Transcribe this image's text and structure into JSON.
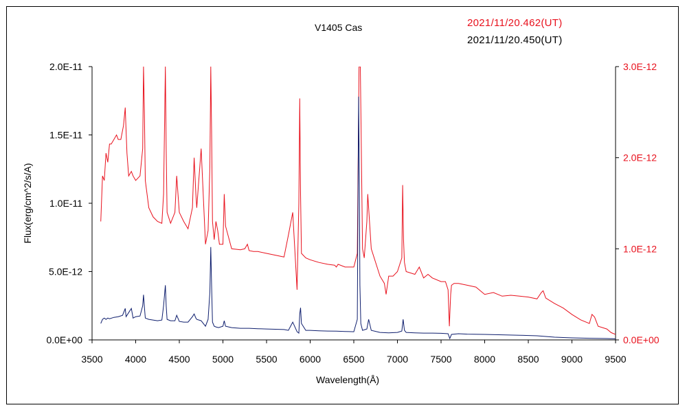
{
  "chart_data": {
    "type": "line",
    "title": "V1405 Cas",
    "xlabel": "Wavelength(Å)",
    "ylabel": "Flux(erg/cm^2/s/A)",
    "xlim": [
      3500,
      9500
    ],
    "ylim_left": [
      0,
      2e-11
    ],
    "ylim_right": [
      0,
      3e-12
    ],
    "x_ticks": [
      "3500",
      "4000",
      "4500",
      "5000",
      "5500",
      "6000",
      "6500",
      "7000",
      "7500",
      "8000",
      "8500",
      "9000",
      "9500"
    ],
    "y_ticks_left": [
      "0.0E+00",
      "5.0E-12",
      "1.0E-11",
      "1.5E-11",
      "2.0E-11"
    ],
    "y_ticks_right": [
      "0.0E+00",
      "1.0E-12",
      "2.0E-12",
      "3.0E-12"
    ],
    "grid": false,
    "series": [
      {
        "name": "2021/11/20.462(UT)",
        "axis": "right",
        "color": "#e8101c",
        "x": [
          3600,
          3620,
          3640,
          3660,
          3680,
          3700,
          3720,
          3750,
          3780,
          3800,
          3830,
          3860,
          3880,
          3890,
          3900,
          3920,
          3950,
          3970,
          4000,
          4050,
          4080,
          4090,
          4100,
          4110,
          4150,
          4200,
          4250,
          4300,
          4320,
          4340,
          4350,
          4360,
          4400,
          4450,
          4470,
          4500,
          4550,
          4600,
          4650,
          4670,
          4690,
          4700,
          4750,
          4800,
          4830,
          4850,
          4861,
          4870,
          4880,
          4900,
          4920,
          4940,
          4960,
          5000,
          5015,
          5030,
          5100,
          5200,
          5250,
          5280,
          5300,
          5350,
          5400,
          5500,
          5600,
          5700,
          5750,
          5800,
          5850,
          5870,
          5880,
          5890,
          5900,
          5950,
          6000,
          6100,
          6200,
          6280,
          6300,
          6320,
          6400,
          6500,
          6540,
          6560,
          6575,
          6600,
          6620,
          6650,
          6660,
          6700,
          6800,
          6850,
          6870,
          6900,
          6950,
          7000,
          7050,
          7060,
          7070,
          7080,
          7100,
          7200,
          7250,
          7300,
          7350,
          7400,
          7500,
          7550,
          7580,
          7595,
          7610,
          7620,
          7650,
          7700,
          7800,
          7900,
          8000,
          8100,
          8200,
          8300,
          8400,
          8500,
          8600,
          8650,
          8670,
          8700,
          8800,
          8900,
          9000,
          9100,
          9200,
          9230,
          9260,
          9300,
          9400,
          9450,
          9500
        ],
        "values": [
          1.3e-12,
          1.8e-12,
          1.75e-12,
          2.05e-12,
          1.95e-12,
          2.15e-12,
          2.15e-12,
          2.2e-12,
          2.25e-12,
          2.2e-12,
          2.2e-12,
          2.35e-12,
          2.55e-12,
          2.3e-12,
          2.05e-12,
          1.8e-12,
          1.85e-12,
          1.8e-12,
          1.75e-12,
          1.8e-12,
          2.1e-12,
          3e-12,
          2.5e-12,
          1.75e-12,
          1.45e-12,
          1.35e-12,
          1.3e-12,
          1.28e-12,
          1.6e-12,
          3e-12,
          2.1e-12,
          1.4e-12,
          1.28e-12,
          1.4e-12,
          1.8e-12,
          1.4e-12,
          1.3e-12,
          1.22e-12,
          1.45e-12,
          2e-12,
          1.6e-12,
          1.45e-12,
          2.1e-12,
          1.05e-12,
          1.2e-12,
          1.9e-12,
          3e-12,
          2.3e-12,
          1.3e-12,
          1.1e-12,
          1.3e-12,
          1.2e-12,
          1.05e-12,
          1.05e-12,
          1.6e-12,
          1.25e-12,
          1e-12,
          9.9e-13,
          1e-12,
          1.05e-12,
          9.8e-13,
          9.7e-13,
          9.7e-13,
          9.5e-13,
          9.3e-13,
          9.1e-13,
          1.15e-12,
          1.4e-12,
          5.5e-13,
          1.5e-12,
          2.65e-12,
          1.6e-12,
          9.5e-13,
          9e-13,
          8.8e-13,
          8.5e-13,
          8.3e-13,
          8.2e-13,
          8e-13,
          8.3e-13,
          8e-13,
          8e-13,
          9.5e-13,
          3e-12,
          3e-12,
          1e-12,
          9e-13,
          1.3e-12,
          1.6e-12,
          1e-12,
          7e-13,
          6.2e-13,
          5e-13,
          7e-13,
          7e-13,
          7.5e-13,
          9e-13,
          1.7e-12,
          1.1e-12,
          8.5e-13,
          7.5e-13,
          7.2e-13,
          8e-13,
          6.8e-13,
          7.2e-13,
          6.8e-13,
          6.4e-13,
          6.4e-13,
          5.5e-13,
          1.5e-13,
          5e-13,
          6e-13,
          6.2e-13,
          6.2e-13,
          6e-13,
          5.8e-13,
          5e-13,
          5.2e-13,
          4.8e-13,
          4.9e-13,
          4.8e-13,
          4.7e-13,
          4.5e-13,
          5.2e-13,
          5.4e-13,
          4.6e-13,
          4e-13,
          3.5e-13,
          2.8e-13,
          2.2e-13,
          1.8e-13,
          2.8e-13,
          2.5e-13,
          1.5e-13,
          1.2e-13,
          8e-14,
          6e-14
        ]
      },
      {
        "name": "2021/11/20.450(UT)",
        "axis": "left",
        "color": "#0c1c6c",
        "x": [
          3600,
          3620,
          3640,
          3660,
          3680,
          3700,
          3750,
          3800,
          3850,
          3880,
          3890,
          3900,
          3930,
          3950,
          3970,
          4000,
          4050,
          4080,
          4090,
          4100,
          4110,
          4150,
          4200,
          4250,
          4300,
          4320,
          4340,
          4350,
          4360,
          4400,
          4450,
          4470,
          4500,
          4550,
          4600,
          4650,
          4670,
          4690,
          4700,
          4750,
          4800,
          4830,
          4850,
          4861,
          4870,
          4880,
          4900,
          4920,
          4950,
          5000,
          5015,
          5030,
          5100,
          5200,
          5300,
          5400,
          5500,
          5600,
          5700,
          5750,
          5800,
          5850,
          5870,
          5880,
          5890,
          5900,
          5950,
          6000,
          6100,
          6200,
          6300,
          6400,
          6500,
          6540,
          6555,
          6563,
          6570,
          6580,
          6600,
          6650,
          6670,
          6700,
          6800,
          6900,
          7000,
          7050,
          7065,
          7080,
          7100,
          7200,
          7300,
          7400,
          7500,
          7580,
          7600,
          7620,
          7700,
          7800,
          8000,
          8200,
          8400,
          8600,
          8800,
          9000,
          9200,
          9400,
          9500
        ],
        "values": [
          1.2e-12,
          1.5e-12,
          1.6e-12,
          1.5e-12,
          1.6e-12,
          1.55e-12,
          1.65e-12,
          1.7e-12,
          1.8e-12,
          2.3e-12,
          1.7e-12,
          1.8e-12,
          2.1e-12,
          2.3e-12,
          1.6e-12,
          1.7e-12,
          1.75e-12,
          2.5e-12,
          3.3e-12,
          2.4e-12,
          1.6e-12,
          1.5e-12,
          1.45e-12,
          1.4e-12,
          1.45e-12,
          2.5e-12,
          4e-12,
          2.5e-12,
          1.5e-12,
          1.4e-12,
          1.4e-12,
          1.8e-12,
          1.35e-12,
          1.3e-12,
          1.3e-12,
          1.7e-12,
          1.9e-12,
          1.6e-12,
          1.5e-12,
          1.4e-12,
          1e-12,
          1.5e-12,
          3.5e-12,
          6.8e-12,
          4e-12,
          1.3e-12,
          1e-12,
          9.5e-13,
          9e-13,
          1e-12,
          1.4e-12,
          1e-12,
          9e-13,
          8.5e-13,
          8.5e-13,
          8.2e-13,
          8e-13,
          7.8e-13,
          7.6e-13,
          7e-13,
          1.3e-12,
          6e-13,
          5e-13,
          1.9e-12,
          2.35e-12,
          1.2e-12,
          7e-13,
          7e-13,
          6.7e-13,
          6.5e-13,
          6.4e-13,
          6.2e-13,
          6e-13,
          1.5e-12,
          1.78e-11,
          1.2e-11,
          4e-12,
          1.2e-12,
          7e-13,
          8e-13,
          1.5e-12,
          7e-13,
          5.5e-13,
          5.2e-13,
          5.5e-13,
          6.5e-13,
          1.5e-12,
          7e-13,
          5.5e-13,
          5.2e-13,
          5e-13,
          5e-13,
          4.8e-13,
          4.5e-13,
          1e-13,
          4e-13,
          4.5e-13,
          4.2e-13,
          4e-13,
          3.7e-13,
          3.4e-13,
          3e-13,
          2e-13,
          1.5e-13,
          1.2e-13,
          1e-13,
          8e-14
        ]
      }
    ]
  }
}
